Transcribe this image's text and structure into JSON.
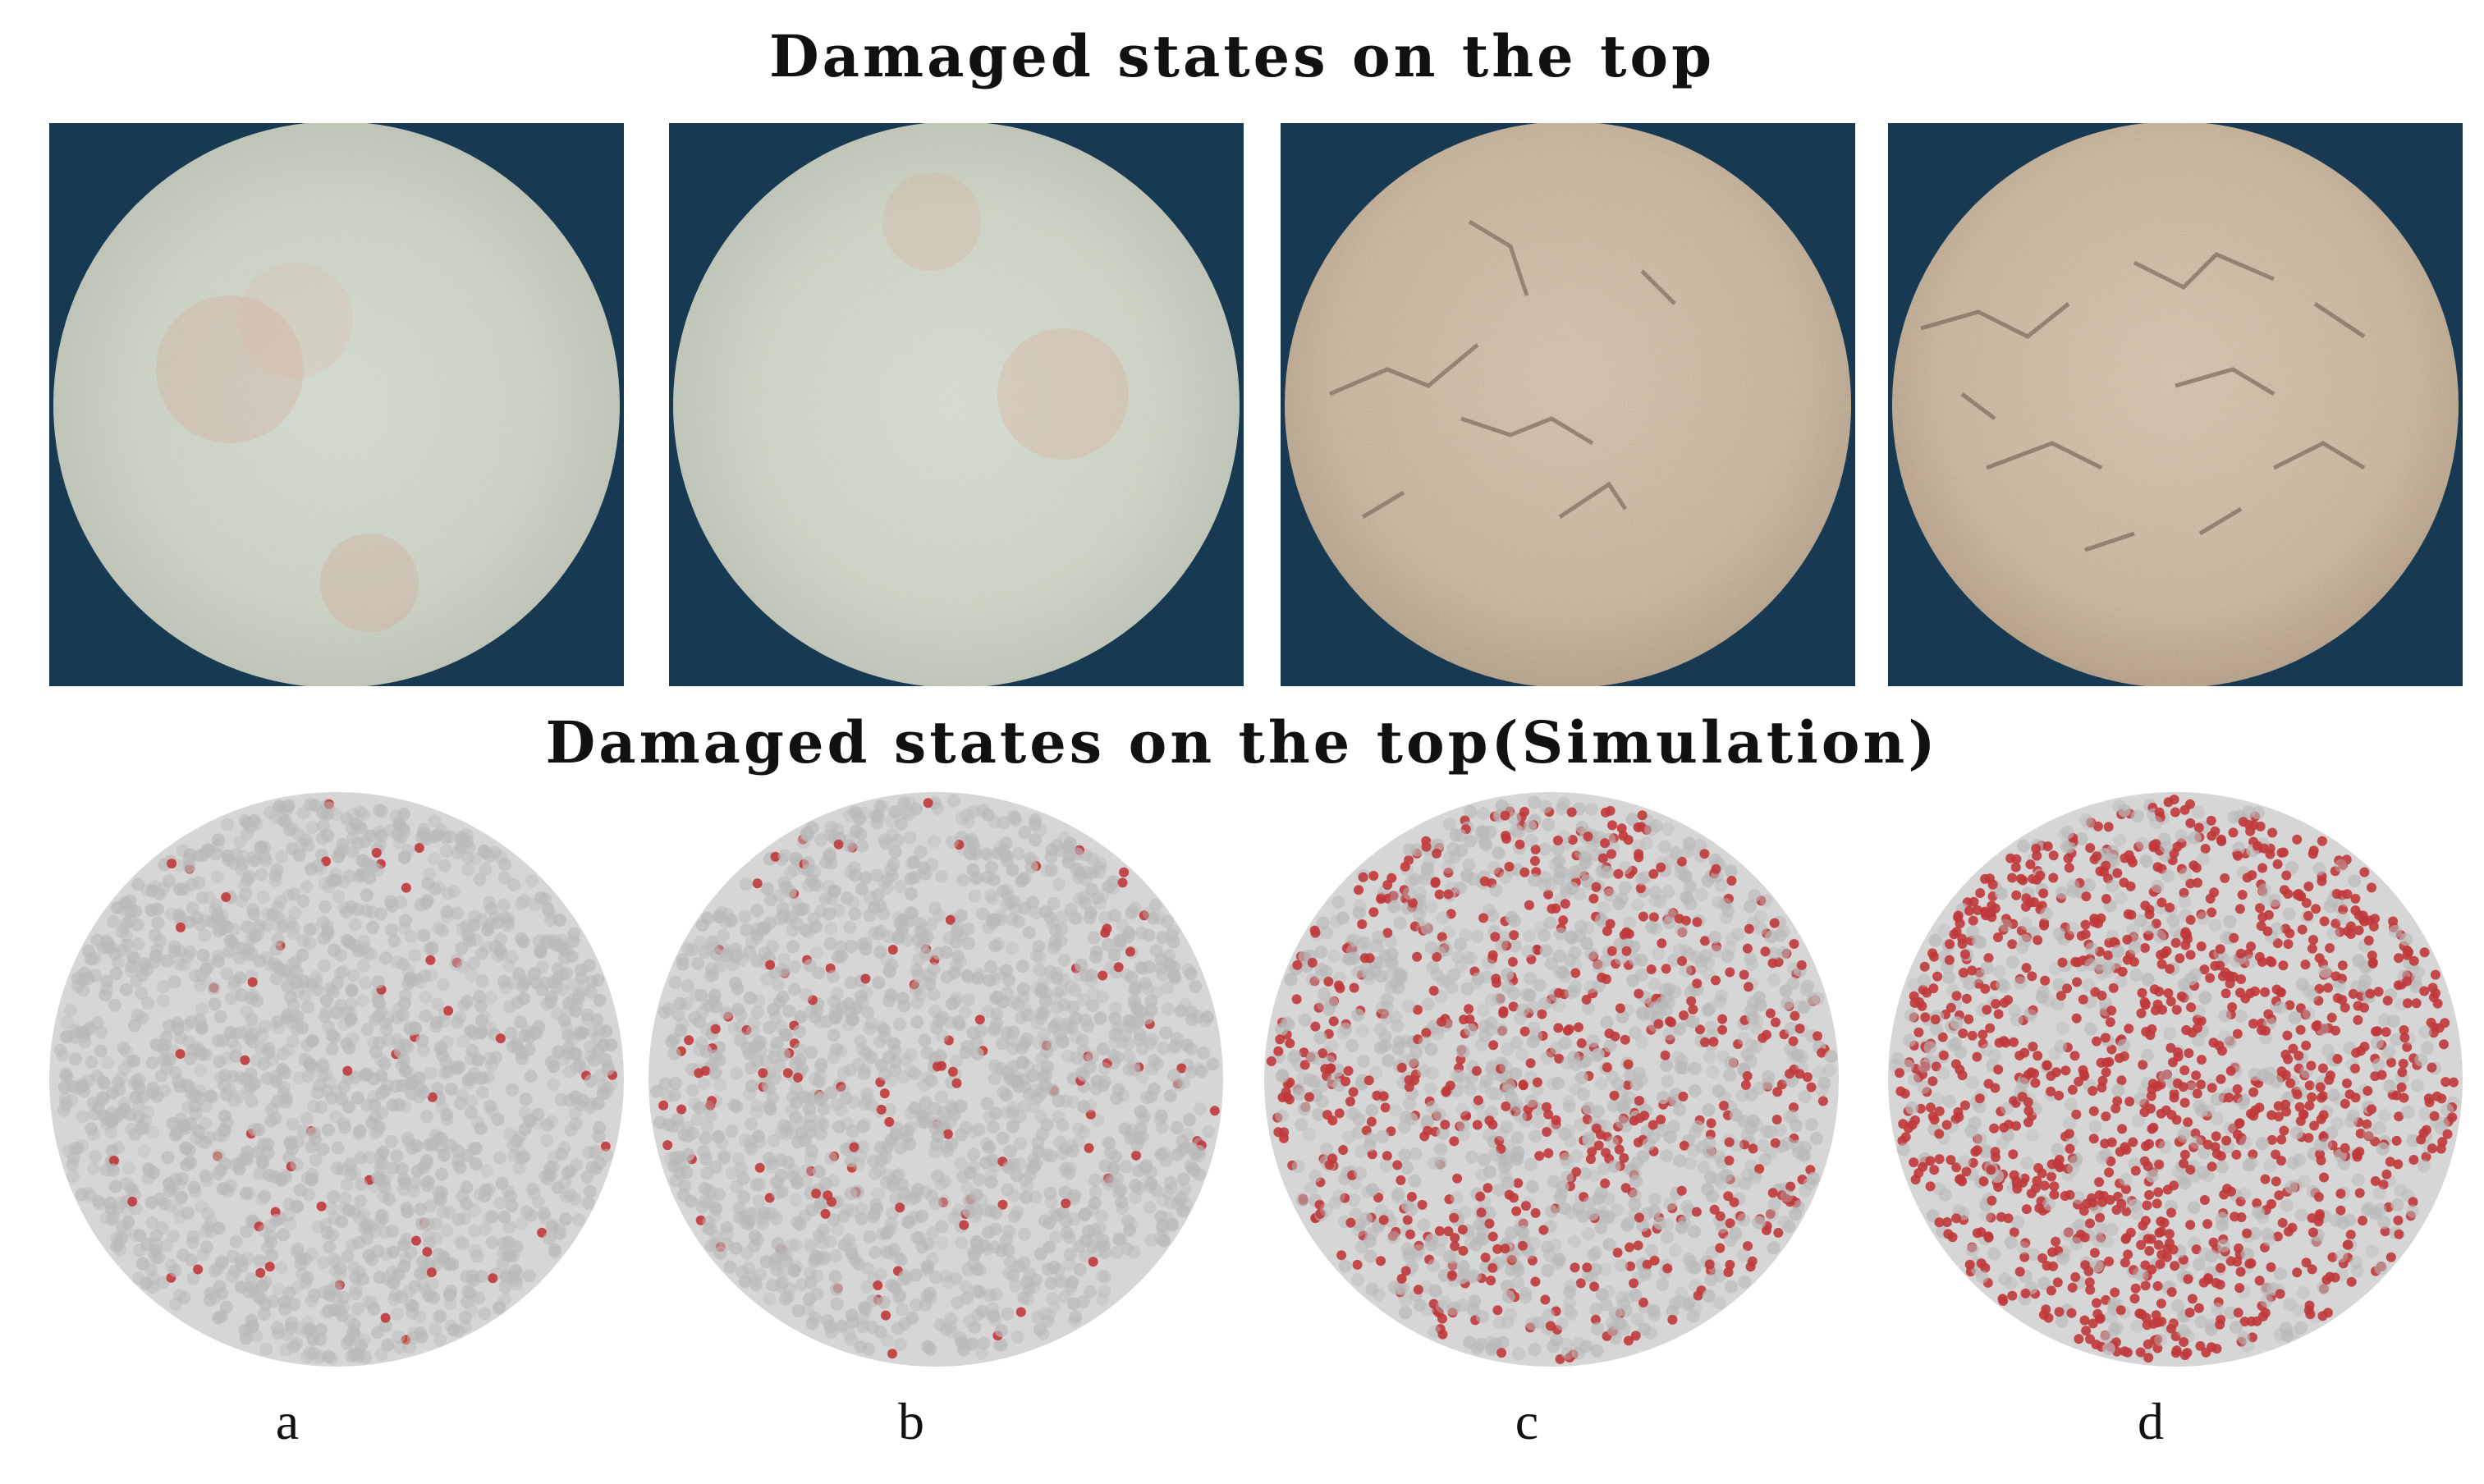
{
  "titles": {
    "top": "Damaged states on the top",
    "simulation": "Damaged states on the top(Simulation)"
  },
  "panels": [
    {
      "label": "a",
      "photo": {
        "tone": "light-gray-green",
        "cracks": 0
      },
      "simulation": {
        "damage_fraction": 0.03
      }
    },
    {
      "label": "b",
      "photo": {
        "tone": "light-gray-green",
        "cracks": 0
      },
      "simulation": {
        "damage_fraction": 0.08
      }
    },
    {
      "label": "c",
      "photo": {
        "tone": "tan",
        "cracks": 6
      },
      "simulation": {
        "damage_fraction": 0.35
      }
    },
    {
      "label": "d",
      "photo": {
        "tone": "tan",
        "cracks": 9
      },
      "simulation": {
        "damage_fraction": 0.65
      }
    }
  ],
  "colors": {
    "photo_background": "#173a52",
    "particle_gray": "#b9b9b9",
    "damage_red": "#c0393b"
  }
}
